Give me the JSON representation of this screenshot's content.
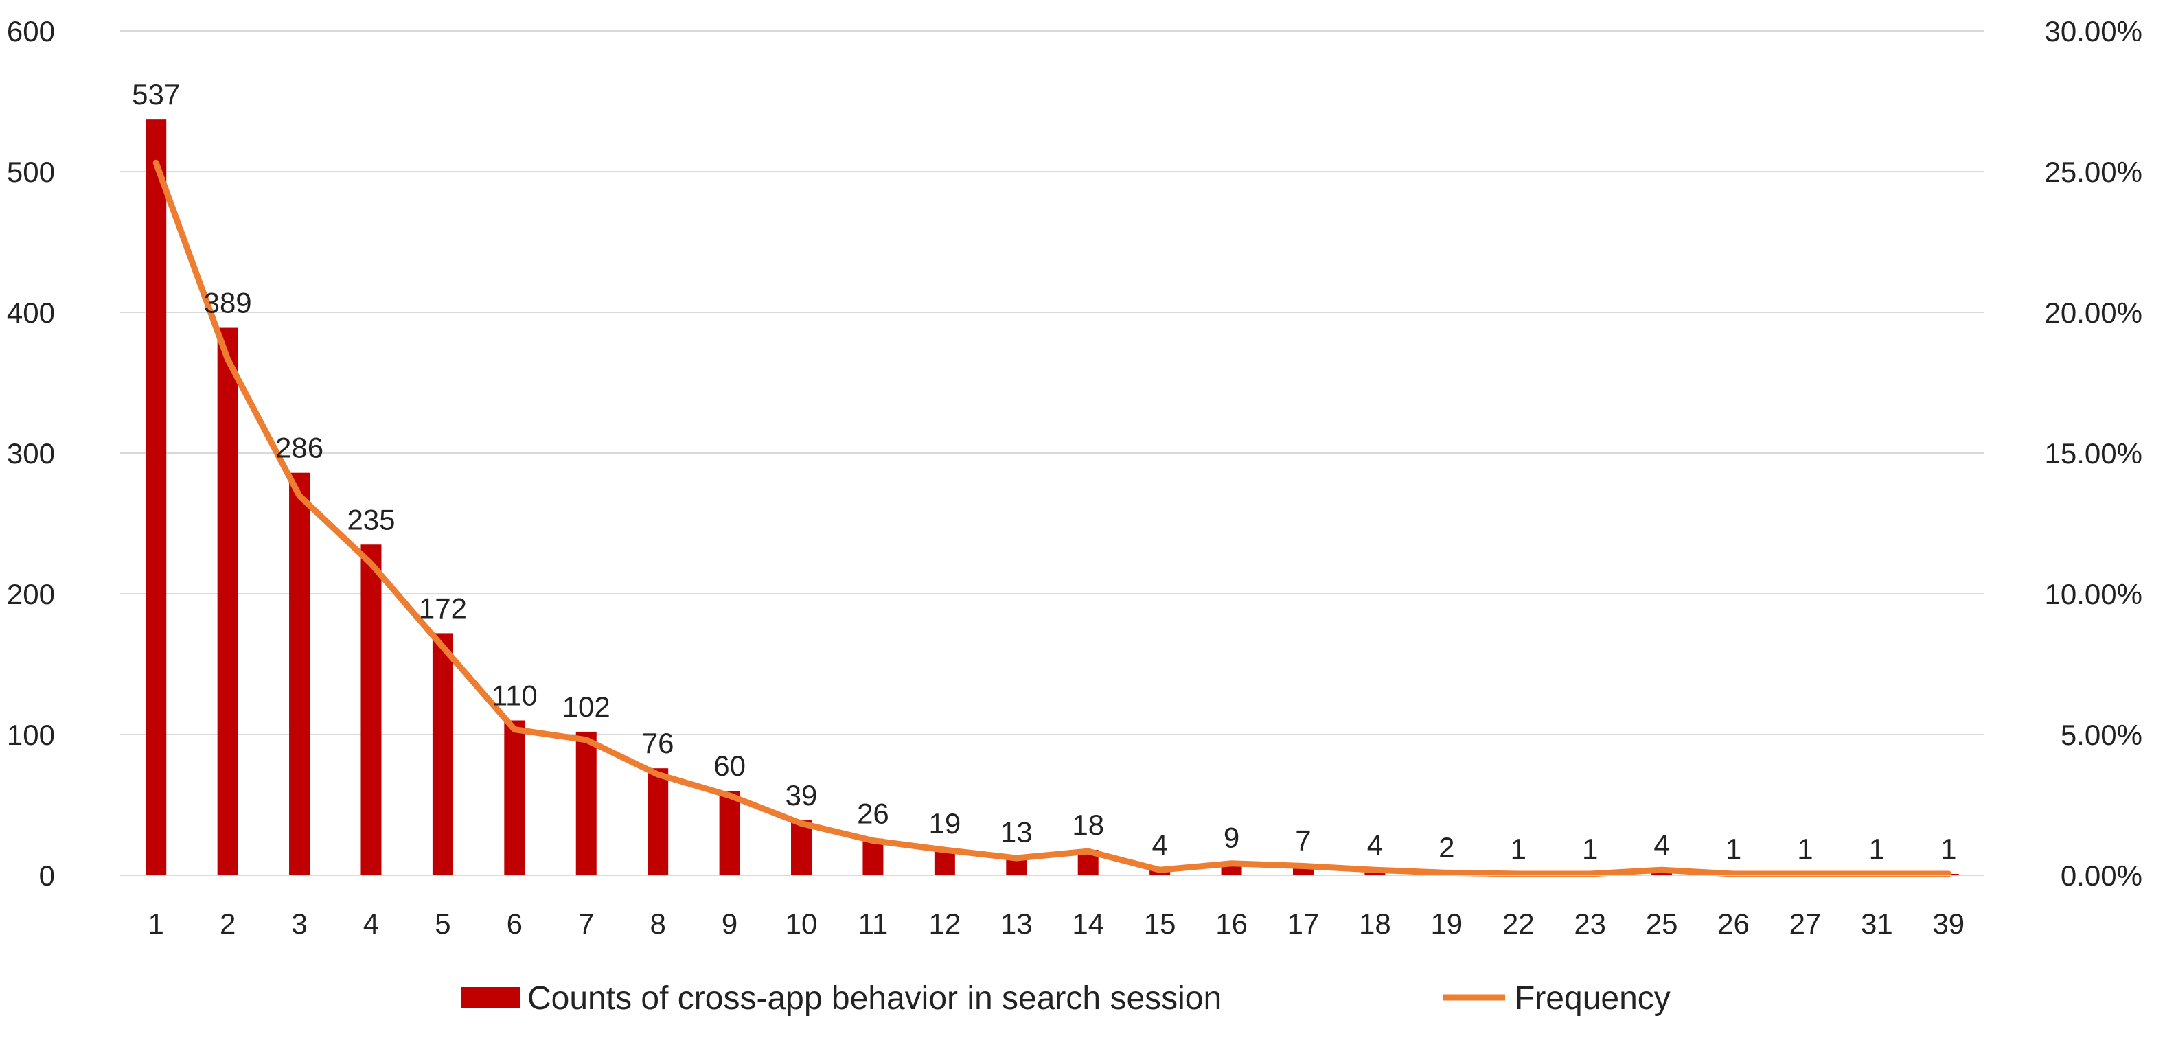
{
  "chart_data": {
    "type": "bar",
    "categories": [
      "1",
      "2",
      "3",
      "4",
      "5",
      "6",
      "7",
      "8",
      "9",
      "10",
      "11",
      "12",
      "13",
      "14",
      "15",
      "16",
      "17",
      "18",
      "19",
      "22",
      "23",
      "25",
      "26",
      "27",
      "31",
      "39"
    ],
    "series": [
      {
        "name": "Counts of cross-app behavior in search session",
        "type": "bar",
        "axis": "left",
        "color": "#C00000",
        "values": [
          537,
          389,
          286,
          235,
          172,
          110,
          102,
          76,
          60,
          39,
          26,
          19,
          13,
          18,
          4,
          9,
          7,
          4,
          2,
          1,
          1,
          4,
          1,
          1,
          1,
          1
        ]
      },
      {
        "name": "Frequency",
        "type": "line",
        "axis": "right",
        "color": "#ED7D31",
        "values": [
          25.31,
          18.33,
          13.48,
          11.07,
          8.11,
          5.18,
          4.81,
          3.58,
          2.83,
          1.84,
          1.23,
          0.9,
          0.61,
          0.85,
          0.19,
          0.42,
          0.33,
          0.19,
          0.09,
          0.05,
          0.05,
          0.19,
          0.05,
          0.05,
          0.05,
          0.05
        ]
      }
    ],
    "title": "",
    "xlabel": "",
    "ylabel": "",
    "ylim": [
      0,
      600
    ],
    "y_ticks": [
      "0",
      "100",
      "200",
      "300",
      "400",
      "500",
      "600"
    ],
    "y2lim": [
      0,
      30
    ],
    "y2_ticks": [
      "0.00%",
      "5.00%",
      "10.00%",
      "15.00%",
      "20.00%",
      "25.00%",
      "30.00%"
    ],
    "grid": true,
    "legend": "bottom"
  }
}
